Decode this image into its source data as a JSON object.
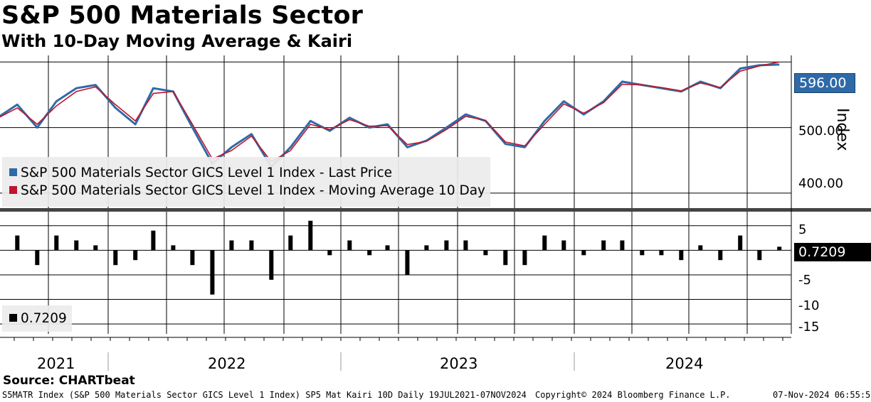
{
  "header": {
    "title": "S&P 500 Materials Sector",
    "subtitle": "With 10-Day Moving Average & Kairi"
  },
  "chart_data": [
    {
      "type": "line",
      "title": "S&P 500 Materials Sector",
      "ylabel": "Index",
      "ylim": [
        375,
        610
      ],
      "yticks": [
        "500.00",
        "400.00"
      ],
      "last_value_label": "596.00",
      "x_range": [
        "2021-07-19",
        "2024-11-07"
      ],
      "series": [
        {
          "name": "S&P 500 Materials Sector GICS Level 1 Index - Last Price",
          "color": "#2f6aa8",
          "x": [
            "2021-07",
            "2021-08",
            "2021-09",
            "2021-10",
            "2021-11",
            "2021-12",
            "2022-01",
            "2022-02",
            "2022-03",
            "2022-04",
            "2022-05",
            "2022-06",
            "2022-07",
            "2022-08",
            "2022-09",
            "2022-10",
            "2022-11",
            "2022-12",
            "2023-01",
            "2023-02",
            "2023-03",
            "2023-04",
            "2023-05",
            "2023-06",
            "2023-07",
            "2023-08",
            "2023-09",
            "2023-10",
            "2023-11",
            "2023-12",
            "2024-01",
            "2024-02",
            "2024-03",
            "2024-04",
            "2024-05",
            "2024-06",
            "2024-07",
            "2024-08",
            "2024-09",
            "2024-10",
            "2024-11"
          ],
          "values": [
            515,
            535,
            500,
            540,
            560,
            565,
            530,
            505,
            560,
            555,
            500,
            445,
            470,
            490,
            440,
            470,
            510,
            495,
            515,
            500,
            505,
            470,
            480,
            500,
            520,
            510,
            475,
            470,
            510,
            540,
            520,
            540,
            570,
            565,
            560,
            555,
            570,
            560,
            590,
            595,
            596
          ]
        },
        {
          "name": "S&P 500 Materials Sector GICS Level 1 Index - Moving Average 10 Day",
          "color": "#c0152a",
          "x": [
            "2021-07",
            "2021-08",
            "2021-09",
            "2021-10",
            "2021-11",
            "2021-12",
            "2022-01",
            "2022-02",
            "2022-03",
            "2022-04",
            "2022-05",
            "2022-06",
            "2022-07",
            "2022-08",
            "2022-09",
            "2022-10",
            "2022-11",
            "2022-12",
            "2023-01",
            "2023-02",
            "2023-03",
            "2023-04",
            "2023-05",
            "2023-06",
            "2023-07",
            "2023-08",
            "2023-09",
            "2023-10",
            "2023-11",
            "2023-12",
            "2024-01",
            "2024-02",
            "2024-03",
            "2024-04",
            "2024-05",
            "2024-06",
            "2024-07",
            "2024-08",
            "2024-09",
            "2024-10",
            "2024-11"
          ],
          "values": [
            514,
            530,
            505,
            533,
            555,
            562,
            535,
            510,
            552,
            555,
            505,
            452,
            465,
            487,
            448,
            465,
            505,
            497,
            512,
            502,
            503,
            474,
            479,
            497,
            517,
            511,
            478,
            472,
            505,
            536,
            522,
            538,
            566,
            565,
            561,
            556,
            568,
            561,
            586,
            594,
            600
          ]
        }
      ]
    },
    {
      "type": "bar",
      "title": "SP5 Mat Kairi 10D",
      "ylim": [
        -17,
        8
      ],
      "yticks": [
        "5",
        "0",
        "-5",
        "-10",
        "-15"
      ],
      "last_value_label": "0.7209",
      "legend_value": "0.7209",
      "categories": [
        "2021-07",
        "2021-08",
        "2021-09",
        "2021-10",
        "2021-11",
        "2021-12",
        "2022-01",
        "2022-02",
        "2022-03",
        "2022-04",
        "2022-05",
        "2022-06",
        "2022-07",
        "2022-08",
        "2022-09",
        "2022-10",
        "2022-11",
        "2022-12",
        "2023-01",
        "2023-02",
        "2023-03",
        "2023-04",
        "2023-05",
        "2023-06",
        "2023-07",
        "2023-08",
        "2023-09",
        "2023-10",
        "2023-11",
        "2023-12",
        "2024-01",
        "2024-02",
        "2024-03",
        "2024-04",
        "2024-05",
        "2024-06",
        "2024-07",
        "2024-08",
        "2024-09",
        "2024-10",
        "2024-11"
      ],
      "values": [
        2,
        3,
        -3,
        3,
        2,
        1,
        -3,
        -2,
        4,
        1,
        -3,
        -9,
        2,
        2,
        -6,
        3,
        6,
        -1,
        2,
        -1,
        1,
        -5,
        1,
        2,
        2,
        -1,
        -3,
        -3,
        3,
        2,
        -1,
        2,
        2,
        -1,
        -1,
        -2,
        1,
        -2,
        3,
        -2,
        0.7209
      ]
    }
  ],
  "legend": {
    "price_label": "S&P 500 Materials Sector GICS Level 1 Index - Last Price",
    "ma_label": "S&P 500 Materials Sector GICS Level 1 Index - Moving Average 10 Day",
    "kairi_value": "0.7209"
  },
  "axis": {
    "y_title": "Index",
    "years": [
      "2021",
      "2022",
      "2023",
      "2024"
    ]
  },
  "footer": {
    "source": "Source: CHARTbeat",
    "ticker_line": "S5MATR Index (S&P 500 Materials Sector GICS Level 1 Index) SP5 Mat Kairi 10D  Daily 19JUL2021-07NOV2024",
    "copyright": "Copyright© 2024 Bloomberg Finance L.P.",
    "timestamp": "07-Nov-2024 06:55:51"
  },
  "colors": {
    "price": "#2f6aa8",
    "moving_average": "#c0152a",
    "kairi": "#000000",
    "price_badge": "#2f6aa8",
    "kairi_badge": "#000000"
  }
}
